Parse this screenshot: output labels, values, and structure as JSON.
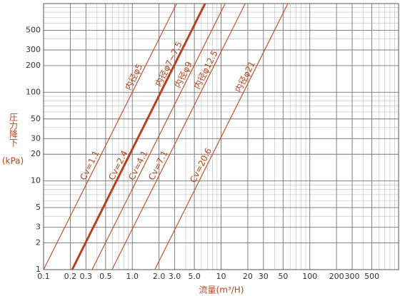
{
  "chart_data": {
    "type": "line",
    "xlabel": "流量(m³/H)",
    "ylabel": "圧力降下",
    "yunit": "(kPa)",
    "log_x": true,
    "log_y": true,
    "grid": true,
    "minor_grid": true,
    "xlim": [
      0.1,
      1000
    ],
    "ylim": [
      1,
      1000
    ],
    "xticks": [
      0.1,
      0.2,
      0.3,
      0.5,
      {
        "value": 1,
        "label": "1.0"
      },
      {
        "value": 2,
        "label": "2.0"
      },
      {
        "value": 3,
        "label": "3.0"
      },
      {
        "value": 5,
        "label": "5.0"
      },
      10,
      20,
      30,
      50,
      100,
      200,
      300,
      500
    ],
    "yticks": [
      1,
      2,
      3,
      5,
      10,
      20,
      30,
      50,
      100,
      200,
      300,
      500
    ],
    "series": [
      {
        "name": "Cv=1.1",
        "diameter": "内径φ5",
        "color": "#c8502e",
        "width": 1.2,
        "x": [
          0.1,
          3.16
        ],
        "values": [
          1,
          1000
        ]
      },
      {
        "name": "Cv=2.4",
        "diameter": "内径φ7~7.5",
        "color": "#b8401f",
        "width": 3,
        "x": [
          0.21,
          6.6
        ],
        "values": [
          1,
          1000
        ]
      },
      {
        "name": "Cv=4.1",
        "diameter": "内径φ9",
        "color": "#c8502e",
        "width": 1.2,
        "x": [
          0.352,
          11.1
        ],
        "values": [
          1,
          1000
        ]
      },
      {
        "name": "Cv=7.1",
        "diameter": "内径φ12.5",
        "color": "#c8502e",
        "width": 1.2,
        "x": [
          0.59,
          18.7
        ],
        "values": [
          1,
          1000
        ]
      },
      {
        "name": "Cv=20.6",
        "diameter": "内径φ21",
        "color": "#c8502e",
        "width": 1.2,
        "x": [
          1.79,
          56.6
        ],
        "values": [
          1,
          1000
        ]
      }
    ]
  }
}
